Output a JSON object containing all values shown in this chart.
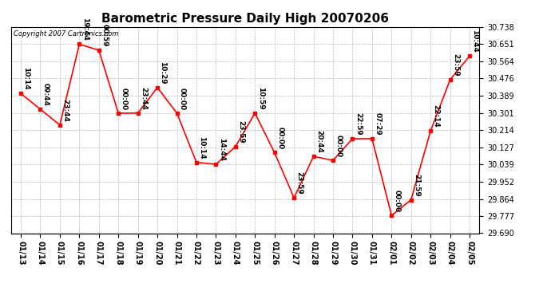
{
  "title": "Barometric Pressure Daily High 20070206",
  "copyright": "Copyright 2007 Cartronics.com",
  "x_labels": [
    "01/13",
    "01/14",
    "01/15",
    "01/16",
    "01/17",
    "01/18",
    "01/19",
    "01/20",
    "01/21",
    "01/22",
    "01/23",
    "01/24",
    "01/25",
    "01/26",
    "01/27",
    "01/28",
    "01/29",
    "01/30",
    "01/31",
    "02/01",
    "02/02",
    "02/03",
    "02/04",
    "02/05"
  ],
  "y_values": [
    30.4,
    30.32,
    30.24,
    30.65,
    30.62,
    30.3,
    30.3,
    30.43,
    30.3,
    30.05,
    30.04,
    30.13,
    30.3,
    30.1,
    29.87,
    30.08,
    30.06,
    30.17,
    30.17,
    29.78,
    29.86,
    30.21,
    30.47,
    30.59
  ],
  "point_labels_clean": [
    "10:14",
    "09:44",
    "23:44",
    "19:44",
    "00:59",
    "00:00",
    "23:44",
    "10:29",
    "00:00",
    "10:14",
    "14:44",
    "23:59",
    "10:59",
    "00:00",
    "23:59",
    "20:44",
    "00:00",
    "22:59",
    "07:29",
    "00:00",
    "21:59",
    "22:14",
    "23:59",
    "10:44"
  ],
  "ylim_min": 29.69,
  "ylim_max": 30.738,
  "yticks": [
    29.69,
    29.777,
    29.864,
    29.952,
    30.039,
    30.127,
    30.214,
    30.301,
    30.389,
    30.476,
    30.564,
    30.651,
    30.738
  ],
  "line_color": "#ff0000",
  "marker_color": "#ff0000",
  "bg_color": "#ffffff",
  "grid_color": "#bbbbbb",
  "title_fontsize": 11,
  "label_fontsize": 6.5,
  "tick_fontsize": 7,
  "copyright_fontsize": 6
}
